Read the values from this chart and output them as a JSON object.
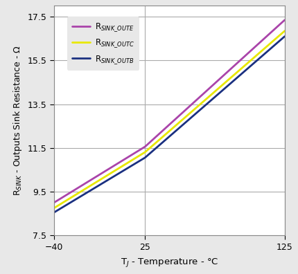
{
  "xlabel": "T$_J$ - Temperature - °C",
  "ylabel": "R$_{SINK}$ - Outputs Sink Resistance - Ω",
  "xlim": [
    -40,
    125
  ],
  "ylim": [
    7.5,
    18.0
  ],
  "xticks": [
    -40,
    25,
    125
  ],
  "yticks": [
    7.5,
    9.5,
    11.5,
    13.5,
    15.5,
    17.5
  ],
  "series": [
    {
      "name": "R$_{SINK\\_OUTE}$",
      "color": "#aa44aa",
      "x": [
        -40,
        25,
        125
      ],
      "y": [
        9.0,
        11.55,
        17.35
      ]
    },
    {
      "name": "R$_{SINK\\_OUTC}$",
      "color": "#e8e800",
      "x": [
        -40,
        25,
        125
      ],
      "y": [
        8.75,
        11.3,
        16.85
      ]
    },
    {
      "name": "R$_{SINK\\_OUTB}$",
      "color": "#1a3080",
      "x": [
        -40,
        25,
        125
      ],
      "y": [
        8.55,
        11.05,
        16.6
      ]
    }
  ],
  "legend_loc": "upper left",
  "background_color": "#e8e8e8",
  "plot_bg_color": "#ffffff",
  "linewidth": 2.0
}
